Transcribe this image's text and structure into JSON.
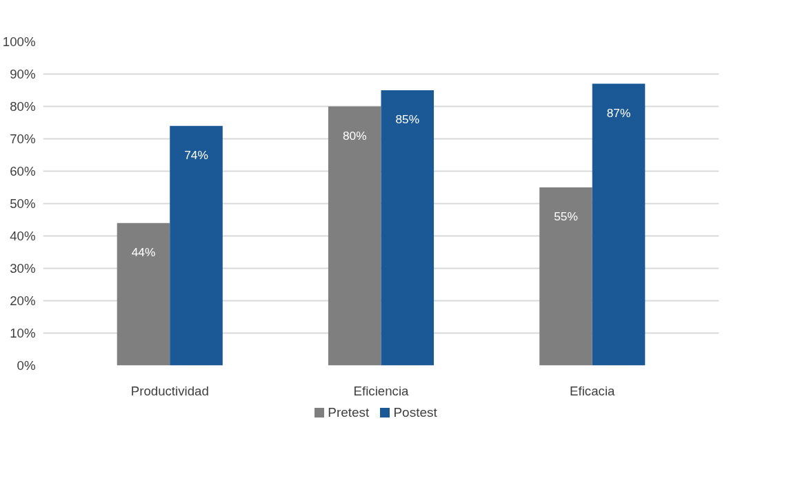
{
  "chart_data": {
    "type": "bar",
    "categories": [
      "Productividad",
      "Eficiencia",
      "Eficacia"
    ],
    "series": [
      {
        "name": "Pretest",
        "color": "#7f7f7f",
        "values": [
          44,
          80,
          55
        ],
        "value_labels": [
          "44%",
          "80%",
          "55%"
        ]
      },
      {
        "name": "Postest",
        "color": "#1a5896",
        "values": [
          74,
          85,
          87
        ],
        "value_labels": [
          "74%",
          "85%",
          "87%"
        ]
      }
    ],
    "ylim": [
      0,
      100
    ],
    "yticks": [
      {
        "value": 0,
        "label": "0%"
      },
      {
        "value": 10,
        "label": "10%"
      },
      {
        "value": 20,
        "label": "20%"
      },
      {
        "value": 30,
        "label": "30%"
      },
      {
        "value": 40,
        "label": "40%"
      },
      {
        "value": 50,
        "label": "50%"
      },
      {
        "value": 60,
        "label": "60%"
      },
      {
        "value": 70,
        "label": "70%"
      },
      {
        "value": 80,
        "label": "80%"
      },
      {
        "value": 90,
        "label": "90%"
      },
      {
        "value": 100,
        "label": "100%"
      }
    ],
    "grid": "y",
    "legend": "bottom"
  }
}
